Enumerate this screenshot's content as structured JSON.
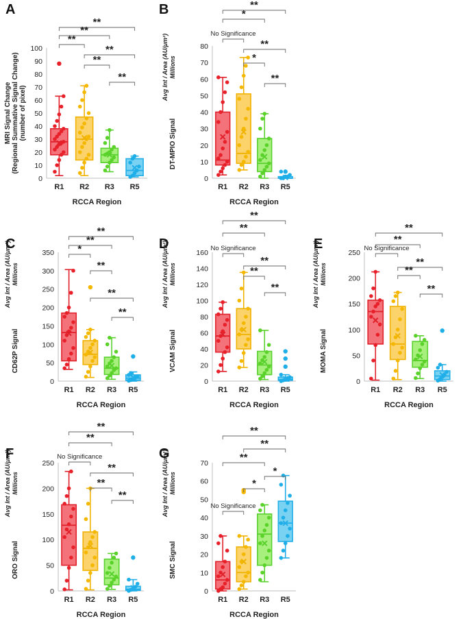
{
  "colors": {
    "R1": {
      "fill": "#f4737a",
      "stroke": "#e0202a",
      "dot": "#e8202a"
    },
    "R2": {
      "fill": "#fcd26b",
      "stroke": "#f0b200",
      "dot": "#f5b800"
    },
    "R3": {
      "fill": "#a8f07e",
      "stroke": "#58d02e",
      "dot": "#5ad22a"
    },
    "R5": {
      "fill": "#7ad2f2",
      "stroke": "#22aee8",
      "dot": "#1eaee8"
    }
  },
  "chart_data": [
    {
      "type": "box",
      "panel": "A",
      "categories": [
        "R1",
        "R2",
        "R3",
        "R5"
      ],
      "xlabel": "RCCA Region",
      "ylabel_lines": [
        "MRI Signal Change",
        "(Regional Summative Signal Change)",
        "(number of pixel)"
      ],
      "ylabel_italic": [],
      "ylim": [
        0,
        100
      ],
      "yticks": [
        0,
        10,
        20,
        30,
        40,
        50,
        60,
        70,
        80,
        90,
        100
      ],
      "boxes": [
        {
          "min": 2,
          "q1": 18,
          "median": 28,
          "q3": 38,
          "max": 63,
          "mean": 27
        },
        {
          "min": 2,
          "q1": 14,
          "median": 30,
          "q3": 47,
          "max": 71,
          "mean": 31
        },
        {
          "min": 5,
          "q1": 12,
          "median": 18,
          "q3": 23,
          "max": 37,
          "mean": 18
        },
        {
          "min": 1,
          "q1": 2,
          "median": 6,
          "q3": 15,
          "max": 17,
          "mean": 8
        }
      ],
      "outliers": [
        [
          88
        ],
        [],
        [],
        []
      ],
      "points": [
        [
          5,
          10,
          14,
          18,
          20,
          22,
          24,
          26,
          27,
          28,
          30,
          32,
          34,
          36,
          38,
          40,
          44,
          49,
          55,
          63
        ],
        [
          4,
          8,
          12,
          15,
          18,
          20,
          24,
          27,
          30,
          32,
          35,
          39,
          42,
          46,
          50,
          55,
          60,
          66,
          71
        ],
        [
          6,
          9,
          12,
          14,
          16,
          18,
          19,
          20,
          22,
          24,
          27,
          31,
          37
        ],
        [
          1,
          2,
          4,
          6,
          9,
          12,
          15,
          17
        ]
      ],
      "brackets": [
        {
          "from": "R1",
          "to": "R5",
          "label": "**"
        },
        {
          "from": "R1",
          "to": "R3",
          "label": "**"
        },
        {
          "from": "R1",
          "to": "R2",
          "label": "**"
        },
        {
          "from": "R2",
          "to": "R5",
          "label": "**"
        },
        {
          "from": "R2",
          "to": "R3",
          "label": "**"
        },
        {
          "from": "R3",
          "to": "R5",
          "label": "**"
        }
      ]
    },
    {
      "type": "box",
      "panel": "B",
      "categories": [
        "R1",
        "R2",
        "R3",
        "R5"
      ],
      "xlabel": "RCCA Region",
      "ylabel_lines": [
        "DT-MPIO Signal"
      ],
      "ylabel_italic": [
        "Avg Int / Area (AU/μm²)",
        "Millions"
      ],
      "ylim": [
        0,
        80
      ],
      "yticks": [
        0,
        10,
        20,
        30,
        40,
        50,
        60,
        70,
        80
      ],
      "boxes": [
        {
          "min": 2,
          "q1": 8,
          "median": 11,
          "q3": 40,
          "max": 61,
          "mean": 25
        },
        {
          "min": 5,
          "q1": 9,
          "median": 15,
          "q3": 51,
          "max": 73,
          "mean": 28
        },
        {
          "min": 0,
          "q1": 4,
          "median": 9,
          "q3": 24,
          "max": 39,
          "mean": 13
        },
        {
          "min": 0,
          "q1": 0,
          "median": 0,
          "q3": 1,
          "max": 1,
          "mean": 0.5
        }
      ],
      "outliers": [
        [],
        [],
        [],
        [
          4
        ]
      ],
      "points": [
        [
          2,
          4,
          6,
          8,
          10,
          12,
          14,
          18,
          22,
          28,
          34,
          40,
          46,
          52,
          58,
          61
        ],
        [
          5,
          8,
          10,
          13,
          16,
          20,
          25,
          30,
          36,
          42,
          48,
          55,
          62,
          68,
          73
        ],
        [
          1,
          3,
          5,
          7,
          9,
          11,
          14,
          17,
          20,
          24,
          30,
          36,
          39
        ],
        [
          0,
          0,
          1,
          1,
          2,
          4
        ]
      ],
      "brackets": [
        {
          "from": "R1",
          "to": "R5",
          "label": "**"
        },
        {
          "from": "R1",
          "to": "R3",
          "label": "*"
        },
        {
          "from": "R1",
          "to": "R2",
          "label": "No Significance"
        },
        {
          "from": "R2",
          "to": "R5",
          "label": "**"
        },
        {
          "from": "R2",
          "to": "R3",
          "label": "*"
        },
        {
          "from": "R3",
          "to": "R5",
          "label": "**"
        }
      ]
    },
    {
      "type": "box",
      "panel": "C",
      "categories": [
        "R1",
        "R2",
        "R3",
        "R5"
      ],
      "xlabel": "RCCA Region",
      "ylabel_lines": [
        "CD62P Signal"
      ],
      "ylabel_italic": [
        "Avg Int / Area (AU/μm²)",
        "Millions"
      ],
      "ylim": [
        0,
        350
      ],
      "yticks": [
        0,
        50,
        100,
        150,
        200,
        250,
        300,
        350
      ],
      "boxes": [
        {
          "min": 32,
          "q1": 55,
          "median": 132,
          "q3": 185,
          "max": 303,
          "mean": 130
        },
        {
          "min": 10,
          "q1": 45,
          "median": 73,
          "q3": 110,
          "max": 140,
          "mean": 78
        },
        {
          "min": 5,
          "q1": 18,
          "median": 35,
          "q3": 65,
          "max": 118,
          "mean": 42
        },
        {
          "min": 0,
          "q1": 2,
          "median": 8,
          "q3": 17,
          "max": 25,
          "mean": 10
        }
      ],
      "outliers": [
        [],
        [
          255
        ],
        [],
        [
          67
        ]
      ],
      "points": [
        [
          35,
          45,
          60,
          75,
          90,
          110,
          125,
          135,
          145,
          160,
          175,
          185,
          200,
          240,
          300
        ],
        [
          12,
          25,
          40,
          55,
          65,
          72,
          80,
          90,
          100,
          110,
          120,
          130,
          140
        ],
        [
          8,
          15,
          22,
          30,
          35,
          40,
          48,
          55,
          65,
          80,
          100,
          118
        ],
        [
          1,
          3,
          6,
          9,
          13,
          17,
          22
        ]
      ],
      "brackets": [
        {
          "from": "R1",
          "to": "R5",
          "label": "**"
        },
        {
          "from": "R1",
          "to": "R3",
          "label": "**"
        },
        {
          "from": "R1",
          "to": "R2",
          "label": "*"
        },
        {
          "from": "R2",
          "to": "R3",
          "label": "**"
        },
        {
          "from": "R2",
          "to": "R5",
          "label": "**"
        },
        {
          "from": "R3",
          "to": "R5",
          "label": "**"
        }
      ]
    },
    {
      "type": "box",
      "panel": "D",
      "categories": [
        "R1",
        "R2",
        "R3",
        "R5"
      ],
      "xlabel": "RCCA Region",
      "ylabel_lines": [
        "VCAM Signal"
      ],
      "ylabel_italic": [
        "Avg Int / Area (AU/μm²)",
        "Millions"
      ],
      "ylim": [
        0,
        160
      ],
      "yticks": [
        0,
        20,
        40,
        60,
        80,
        100,
        120,
        140,
        160
      ],
      "boxes": [
        {
          "min": 12,
          "q1": 36,
          "median": 56,
          "q3": 83,
          "max": 98,
          "mean": 58
        },
        {
          "min": 17,
          "q1": 40,
          "median": 58,
          "q3": 90,
          "max": 135,
          "mean": 64
        },
        {
          "min": 2,
          "q1": 8,
          "median": 20,
          "q3": 37,
          "max": 63,
          "mean": 24
        },
        {
          "min": 0,
          "q1": 1,
          "median": 2,
          "q3": 5,
          "max": 8,
          "mean": 3
        }
      ],
      "outliers": [
        [],
        [],
        [],
        [
          37,
          28,
          18
        ]
      ],
      "points": [
        [
          12,
          20,
          28,
          36,
          42,
          50,
          56,
          62,
          70,
          76,
          83,
          90,
          98
        ],
        [
          17,
          25,
          35,
          45,
          52,
          58,
          64,
          72,
          80,
          90,
          100,
          115,
          135
        ],
        [
          3,
          6,
          10,
          14,
          18,
          22,
          26,
          30,
          36,
          45,
          63
        ],
        [
          0,
          1,
          2,
          3,
          5,
          8
        ]
      ],
      "brackets": [
        {
          "from": "R1",
          "to": "R5",
          "label": "**"
        },
        {
          "from": "R1",
          "to": "R3",
          "label": "**"
        },
        {
          "from": "R1",
          "to": "R2",
          "label": "No Significance"
        },
        {
          "from": "R2",
          "to": "R5",
          "label": "**"
        },
        {
          "from": "R2",
          "to": "R3",
          "label": "**"
        },
        {
          "from": "R3",
          "to": "R5",
          "label": "**"
        }
      ]
    },
    {
      "type": "box",
      "panel": "E",
      "categories": [
        "R1",
        "R2",
        "R3",
        "R5"
      ],
      "xlabel": "RCCA Region",
      "ylabel_lines": [
        "MOMA Signal"
      ],
      "ylabel_italic": [
        "Avg Int / Area (AU/μm²)",
        "Millions"
      ],
      "ylim": [
        0,
        250
      ],
      "yticks": [
        0,
        50,
        100,
        150,
        200,
        250
      ],
      "boxes": [
        {
          "min": 2,
          "q1": 72,
          "median": 135,
          "q3": 157,
          "max": 212,
          "mean": 118
        },
        {
          "min": 3,
          "q1": 42,
          "median": 72,
          "q3": 145,
          "max": 172,
          "mean": 88
        },
        {
          "min": 5,
          "q1": 27,
          "median": 40,
          "q3": 77,
          "max": 88,
          "mean": 48
        },
        {
          "min": 0,
          "q1": 3,
          "median": 10,
          "q3": 20,
          "max": 32,
          "mean": 12
        }
      ],
      "outliers": [
        [],
        [],
        [],
        [
          98
        ]
      ],
      "points": [
        [
          5,
          40,
          70,
          90,
          110,
          125,
          135,
          145,
          150,
          157,
          165,
          180,
          212
        ],
        [
          5,
          20,
          40,
          55,
          65,
          72,
          85,
          100,
          120,
          140,
          155,
          165,
          172
        ],
        [
          6,
          15,
          25,
          32,
          38,
          42,
          50,
          60,
          72,
          80,
          88
        ],
        [
          1,
          4,
          8,
          12,
          18,
          26,
          32
        ]
      ],
      "brackets": [
        {
          "from": "R1",
          "to": "R5",
          "label": "**"
        },
        {
          "from": "R1",
          "to": "R3",
          "label": "**"
        },
        {
          "from": "R1",
          "to": "R2",
          "label": "No Significance"
        },
        {
          "from": "R2",
          "to": "R5",
          "label": "**"
        },
        {
          "from": "R2",
          "to": "R3",
          "label": "**"
        },
        {
          "from": "R3",
          "to": "R5",
          "label": "**"
        }
      ]
    },
    {
      "type": "box",
      "panel": "F",
      "categories": [
        "R1",
        "R2",
        "R3",
        "R5"
      ],
      "xlabel": "RCCA Region",
      "ylabel_lines": [
        "ORO Signal"
      ],
      "ylabel_italic": [
        "Avg Int / Area (AU/μm²)",
        "Millions"
      ],
      "ylim": [
        0,
        250
      ],
      "yticks": [
        0,
        50,
        100,
        150,
        200,
        250
      ],
      "boxes": [
        {
          "min": 2,
          "q1": 50,
          "median": 128,
          "q3": 168,
          "max": 233,
          "mean": 115
        },
        {
          "min": 2,
          "q1": 40,
          "median": 83,
          "q3": 115,
          "max": 200,
          "mean": 88
        },
        {
          "min": 3,
          "q1": 12,
          "median": 25,
          "q3": 62,
          "max": 73,
          "mean": 33
        },
        {
          "min": 0,
          "q1": 1,
          "median": 3,
          "q3": 9,
          "max": 22,
          "mean": 6
        }
      ],
      "outliers": [
        [],
        [],
        [],
        [
          65
        ]
      ],
      "points": [
        [
          3,
          20,
          45,
          65,
          85,
          105,
          120,
          130,
          145,
          160,
          170,
          185,
          200,
          233
        ],
        [
          4,
          20,
          35,
          50,
          65,
          75,
          85,
          95,
          105,
          115,
          140,
          170,
          200
        ],
        [
          4,
          10,
          16,
          22,
          28,
          35,
          45,
          55,
          65,
          73
        ],
        [
          0,
          2,
          4,
          8,
          14,
          22
        ]
      ],
      "brackets": [
        {
          "from": "R1",
          "to": "R5",
          "label": "**"
        },
        {
          "from": "R1",
          "to": "R3",
          "label": "**"
        },
        {
          "from": "R1",
          "to": "R2",
          "label": "No Significance"
        },
        {
          "from": "R2",
          "to": "R5",
          "label": "**"
        },
        {
          "from": "R2",
          "to": "R3",
          "label": "**"
        },
        {
          "from": "R3",
          "to": "R5",
          "label": "**"
        }
      ]
    },
    {
      "type": "box",
      "panel": "G",
      "categories": [
        "R1",
        "R2",
        "R3",
        "R5"
      ],
      "xlabel": "RCCA Region",
      "ylabel_lines": [
        "SMC Signal"
      ],
      "ylabel_italic": [
        "Avg Int / Area (AU/μm²)",
        "Millions"
      ],
      "ylim": [
        0,
        70
      ],
      "yticks": [
        0,
        10,
        20,
        30,
        40,
        50,
        60,
        70
      ],
      "boxes": [
        {
          "min": 0,
          "q1": 1,
          "median": 6,
          "q3": 16,
          "max": 30,
          "mean": 9
        },
        {
          "min": 1,
          "q1": 5,
          "median": 10,
          "q3": 24,
          "max": 30,
          "mean": 16
        },
        {
          "min": 5,
          "q1": 14,
          "median": 31,
          "q3": 42,
          "max": 47,
          "mean": 26
        },
        {
          "min": 18,
          "q1": 27,
          "median": 37,
          "q3": 49,
          "max": 63,
          "mean": 37
        }
      ],
      "outliers": [
        [],
        [
          55,
          54
        ],
        [],
        []
      ],
      "points": [
        [
          0,
          1,
          2,
          4,
          6,
          8,
          10,
          13,
          16,
          22,
          26,
          30
        ],
        [
          1,
          3,
          5,
          8,
          10,
          13,
          16,
          20,
          24,
          28,
          30
        ],
        [
          6,
          10,
          14,
          18,
          22,
          26,
          30,
          33,
          36,
          40,
          44,
          47
        ],
        [
          18,
          22,
          26,
          30,
          34,
          37,
          40,
          44,
          48,
          52,
          58,
          63
        ]
      ],
      "brackets": [
        {
          "from": "R1",
          "to": "R5",
          "label": "**"
        },
        {
          "from": "R2",
          "to": "R5",
          "label": "**"
        },
        {
          "from": "R1",
          "to": "R3",
          "label": "**"
        },
        {
          "from": "R3",
          "to": "R5",
          "label": "*"
        },
        {
          "from": "R2",
          "to": "R3",
          "label": "*"
        },
        {
          "from": "R1",
          "to": "R2",
          "label": "No Significance"
        }
      ]
    }
  ]
}
